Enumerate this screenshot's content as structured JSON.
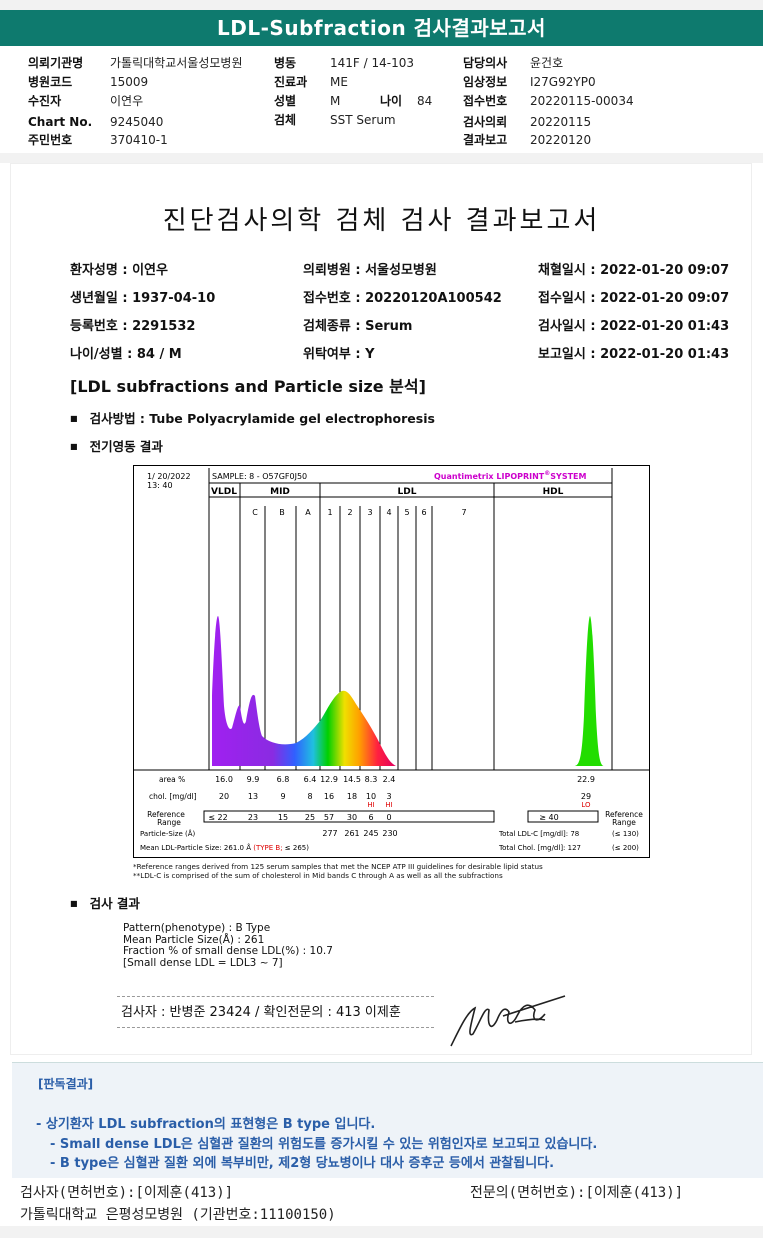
{
  "header": {
    "title": "LDL-Subfraction 검사결과보고서"
  },
  "info": [
    {
      "k": "의뢰기관명",
      "v": "가톨릭대학교서울성모병원"
    },
    {
      "k": "병원코드",
      "v": "15009"
    },
    {
      "k": "수진자",
      "v": "이연우"
    },
    {
      "k": "Chart No.",
      "v": "9245040"
    },
    {
      "k": "주민번호",
      "v": "370410-1"
    },
    {
      "k": "병동",
      "v": "141F / 14-103"
    },
    {
      "k": "진료과",
      "v": "ME"
    },
    {
      "k": "성별",
      "v": "M"
    },
    {
      "k": "나이",
      "v": "84"
    },
    {
      "k": "검체",
      "v": "SST Serum"
    },
    {
      "k": "담당의사",
      "v": "윤건호"
    },
    {
      "k": "임상정보",
      "v": "I27G92YP0"
    },
    {
      "k": "접수번호",
      "v": "20220115-00034"
    },
    {
      "k": "검사의뢰",
      "v": "20220115"
    },
    {
      "k": "결과보고",
      "v": "20220120"
    }
  ],
  "report": {
    "title": "진단검사의학 검체 검사 결과보고서",
    "patient": [
      "환자성명 : 이연우",
      "의뢰병원 : 서울성모병원",
      "채혈일시 : 2022-01-20 09:07",
      "생년월일 : 1937-04-10",
      "접수번호 : 20220120A100542",
      "접수일시 : 2022-01-20 09:07",
      "등록번호 : 2291532",
      "검체종류 : Serum",
      "검사일시 : 2022-01-20 01:43",
      "나이/성별 : 84 / M",
      "위탁여부 : Y",
      "보고일시 : 2022-01-20 01:43"
    ],
    "section": "[LDL subfractions and Particle size 분석]",
    "method": "검사방법 : Tube Polyacrylamide gel electrophoresis",
    "electro": "전기영동 결과",
    "result_head": "검사 결과",
    "result_text": "Pattern(phenotype) : B Type\nMean Particle Size(Å) : 261\nFraction % of small dense LDL(%) : 10.7\n[Small dense LDL = LDL3 ~ 7]",
    "signature": "검사자 : 반병준  23424  /  확인전문의 : 413  이제훈"
  },
  "chart": {
    "date": "1/ 20/2022",
    "time": "13: 40",
    "sample": "SAMPLE:  8 - O57GF0J50",
    "brand": "Quantimetrix LIPOPRINT",
    "system": "SYSTEM",
    "reg": "®",
    "heads": {
      "vldl": "VLDL",
      "mid": "MID",
      "ldl": "LDL",
      "hdl": "HDL"
    },
    "sub": [
      "C",
      "B",
      "A",
      "1",
      "2",
      "3",
      "4",
      "5",
      "6",
      "7"
    ],
    "area_label": "area %",
    "area": [
      "16.0",
      "9.9",
      "6.8",
      "6.4",
      "12.9",
      "14.5",
      "8.3",
      "2.4",
      "22.9"
    ],
    "chol_label": "chol. [mg/dl]",
    "chol": [
      "20",
      "13",
      "9",
      "8",
      "16",
      "18",
      "10",
      "3",
      "29"
    ],
    "hi": [
      "HI",
      "HI"
    ],
    "lo": "LO",
    "ref_label": "Reference Range",
    "ref_left": "≤ 22",
    "ref_vals": [
      "23",
      "15",
      "25",
      "57",
      "30",
      "6",
      "0"
    ],
    "ref_right": "≥ 40",
    "ps_label": "Particle-Size (Å)",
    "ps": [
      "277",
      "261",
      "245",
      "230"
    ],
    "mean_label": "Mean LDL-Particle Size:  261.0 Å",
    "typeb": "(TYPE B;",
    "typeb2": " ≤ 265)",
    "tldl": "Total LDL-C [mg/dl]:  78",
    "tldl_r": "(≤ 130)",
    "tchol": "Total Chol. [mg/dl]:   127",
    "tchol_r": "(≤ 200)",
    "note1": "*Reference ranges derived from 125 serum samples that met the NCEP ATP III guidelines for desirable lipid status",
    "note2": "**LDL-C is comprised of the sum of cholesterol in Mid bands C through A as well as all the subfractions"
  },
  "judgement": {
    "title": "[판독결과]",
    "lines": [
      "- 상기환자 LDL subfraction의 표현형은 B type 입니다.",
      "- Small dense LDL은 심혈관 질환의 위험도를 증가시킬 수 있는 위험인자로 보고되고 있습니다.",
      "- B type은 심혈관 질환 외에 복부비만, 제2형 당뇨병이나 대사 증후군 등에서 관찰됩니다."
    ]
  },
  "footer": {
    "tester": "검사자(면허번호):[이제훈(413)]",
    "specialist": "전문의(면허번호):[이제훈(413)]",
    "hospital": "가톨릭대학교 은평성모병원 (기관번호:11100150)"
  }
}
